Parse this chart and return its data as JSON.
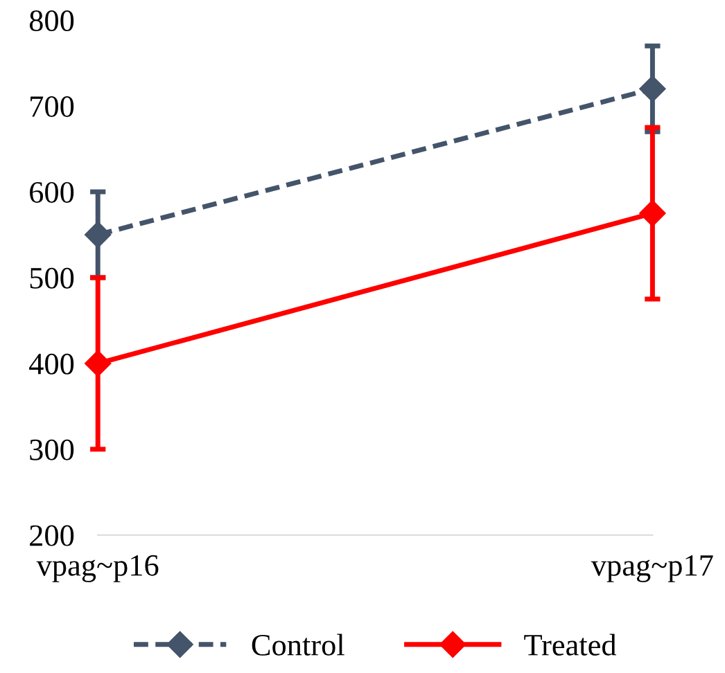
{
  "chart_data": {
    "type": "line",
    "categories": [
      "vpag~p16",
      "vpag~p17"
    ],
    "series": [
      {
        "name": "Control",
        "color": "#44546a",
        "values": [
          550,
          720
        ],
        "errors": [
          50,
          50
        ],
        "line_style": "dashed"
      },
      {
        "name": "Treated",
        "color": "#ff0000",
        "values": [
          400,
          575
        ],
        "errors": [
          100,
          100
        ],
        "line_style": "solid"
      }
    ],
    "ylim": [
      200,
      800
    ],
    "yticks": [
      200,
      300,
      400,
      500,
      600,
      700,
      800
    ],
    "marker": "diamond",
    "grid": false,
    "legend": "bottom"
  }
}
